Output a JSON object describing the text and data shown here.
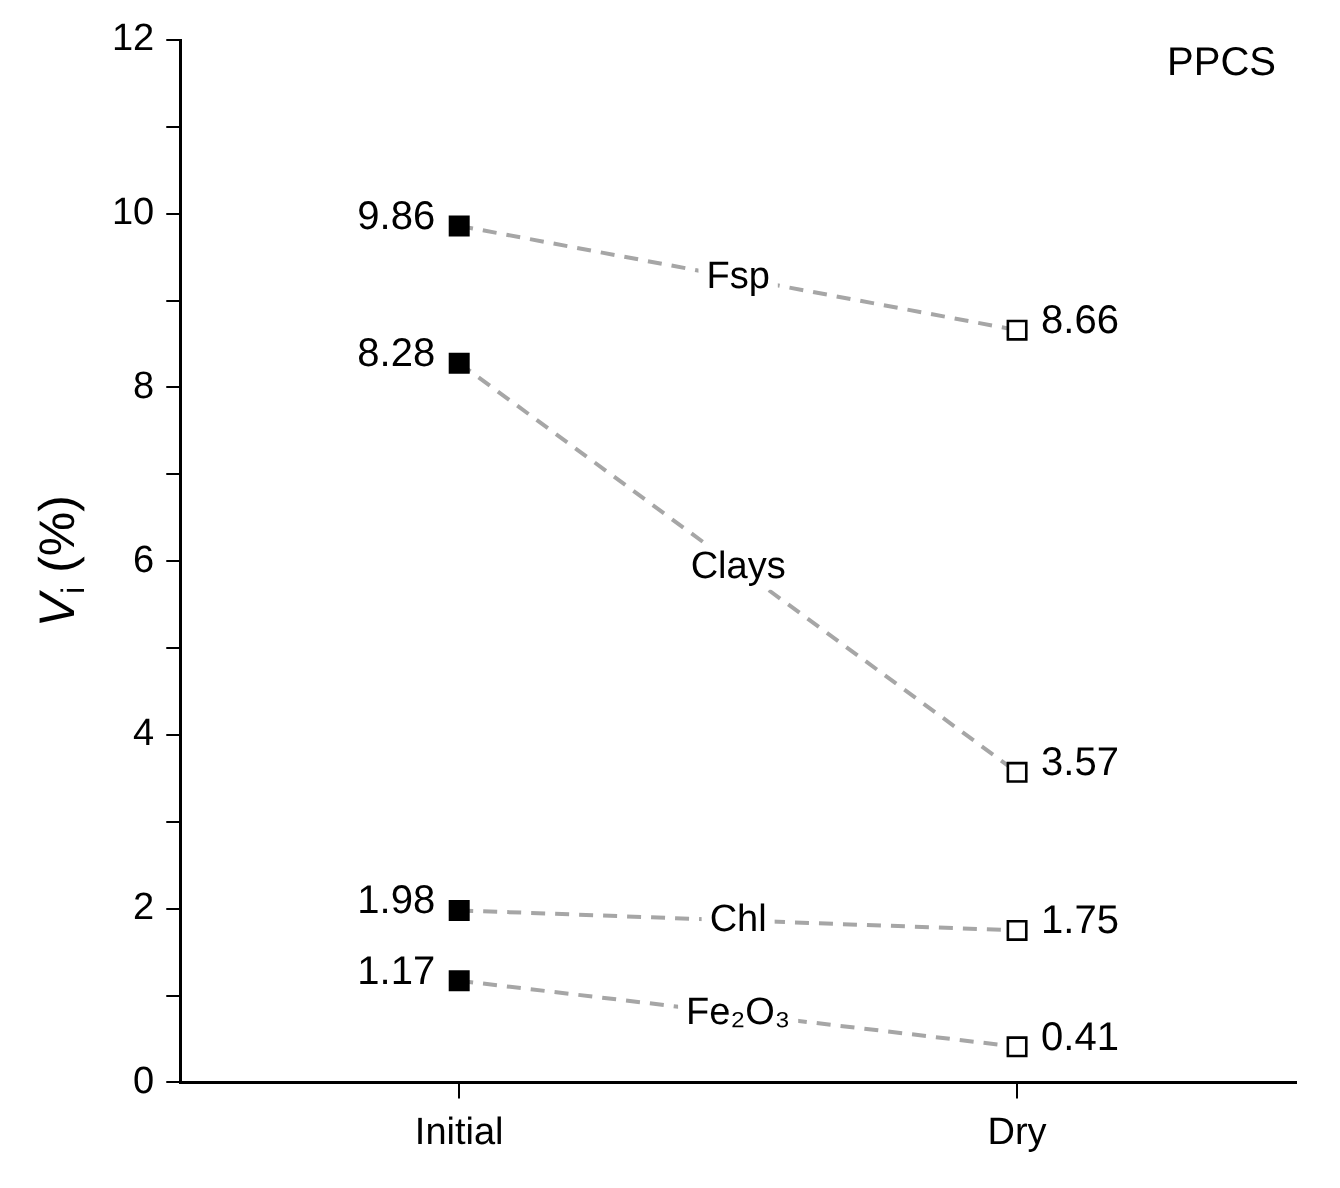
{
  "chart_data": {
    "type": "line",
    "title": "PPCS",
    "ylabel": "V$_{i}$ (%)",
    "categories": [
      "Initial",
      "Dry"
    ],
    "series": [
      {
        "name": "Fsp",
        "color": "#a6a6a6",
        "colors": [
          "#000000",
          "#ffffff"
        ],
        "values": [
          9.86,
          8.66
        ]
      },
      {
        "name": "Clays",
        "color": "#a6a6a6",
        "colors": [
          "#000000",
          "#ffffff"
        ],
        "values": [
          8.28,
          3.57
        ]
      },
      {
        "name": "Chl",
        "color": "#a6a6a6",
        "colors": [
          "#000000",
          "#ffffff"
        ],
        "values": [
          1.98,
          1.75
        ]
      },
      {
        "name": "Fe₂O₃",
        "color": "#a6a6a6",
        "colors": [
          "#000000",
          "#ffffff"
        ],
        "values": [
          1.17,
          0.41
        ]
      }
    ],
    "ylim": [
      0,
      12
    ],
    "yticks": [
      0,
      {
        "value": 1,
        "label": null
      },
      2,
      {
        "value": 3,
        "label": null
      },
      4,
      {
        "value": 5,
        "label": null
      },
      6,
      {
        "value": 7,
        "label": null
      },
      8,
      {
        "value": 9,
        "label": null
      },
      10,
      {
        "value": 11,
        "label": null
      },
      12
    ],
    "grid": false,
    "legend": false,
    "marker": "square",
    "line_style": "dashed",
    "data_labels": true
  }
}
